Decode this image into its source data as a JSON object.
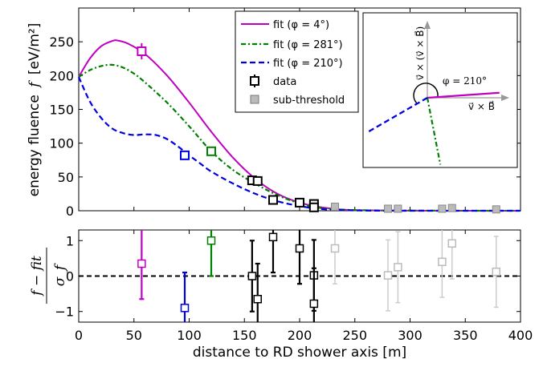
{
  "chart_data": [
    {
      "type": "line",
      "panel": "top",
      "ylabel": "energy fluence",
      "ylabel_symbol": "f",
      "ylabel_unit": "[eV/m²]",
      "xlim": [
        0,
        400
      ],
      "ylim": [
        0,
        300
      ],
      "yticks": [
        0,
        50,
        100,
        150,
        200,
        250
      ],
      "xticks": [
        0,
        50,
        100,
        150,
        200,
        250,
        300,
        350,
        400
      ],
      "legend_position": "top-center",
      "series": [
        {
          "name": "fit (φ = 4°)",
          "style": "solid",
          "color": "#c000c0",
          "x": [
            0,
            10,
            20,
            30,
            35,
            45,
            60,
            80,
            100,
            120,
            140,
            160,
            180,
            200,
            220,
            240,
            270,
            300,
            350,
            400
          ],
          "y": [
            198,
            225,
            243,
            251,
            252,
            247,
            232,
            200,
            160,
            117,
            78,
            47,
            25,
            12,
            5,
            1.5,
            0.5,
            0.2,
            0,
            0
          ]
        },
        {
          "name": "fit (φ = 281°)",
          "style": "dashdot",
          "color": "#008000",
          "x": [
            0,
            10,
            20,
            30,
            40,
            50,
            60,
            80,
            100,
            120,
            140,
            160,
            180,
            200,
            220,
            250,
            300,
            350,
            400
          ],
          "y": [
            198,
            208,
            214,
            216,
            212,
            203,
            190,
            160,
            125,
            88,
            60,
            40,
            23,
            11,
            4,
            1,
            0.3,
            0,
            0
          ]
        },
        {
          "name": "fit (φ = 210°)",
          "style": "dashed",
          "color": "#0000e0",
          "x": [
            0,
            10,
            20,
            30,
            40,
            50,
            60,
            70,
            80,
            90,
            100,
            110,
            120,
            140,
            160,
            180,
            200,
            220,
            250,
            300,
            400
          ],
          "y": [
            198,
            162,
            138,
            122,
            115,
            112,
            113,
            112,
            106,
            95,
            82,
            70,
            58,
            40,
            25,
            14,
            7,
            2.5,
            0.5,
            0,
            0
          ]
        }
      ],
      "data_points": [
        {
          "x": 57,
          "y": 236,
          "err": 12,
          "color": "#c000c0",
          "kind": "data"
        },
        {
          "x": 96,
          "y": 82,
          "err": 5,
          "color": "#0000e0",
          "kind": "data"
        },
        {
          "x": 120,
          "y": 88,
          "err": 5,
          "color": "#008000",
          "kind": "data"
        },
        {
          "x": 157,
          "y": 45,
          "err": 4,
          "color": "#000000",
          "kind": "data"
        },
        {
          "x": 162,
          "y": 44,
          "err": 4,
          "color": "#000000",
          "kind": "data"
        },
        {
          "x": 176,
          "y": 16,
          "err": 4,
          "color": "#000000",
          "kind": "data"
        },
        {
          "x": 200,
          "y": 12,
          "err": 4,
          "color": "#000000",
          "kind": "data"
        },
        {
          "x": 213,
          "y": 10,
          "err": 4,
          "color": "#000000",
          "kind": "data"
        },
        {
          "x": 213,
          "y": 5,
          "err": 3,
          "color": "#000000",
          "kind": "data"
        },
        {
          "x": 232,
          "y": 6,
          "err": 0,
          "color": "#aaaaaa",
          "kind": "sub-threshold"
        },
        {
          "x": 280,
          "y": 3,
          "err": 0,
          "color": "#aaaaaa",
          "kind": "sub-threshold"
        },
        {
          "x": 289,
          "y": 3,
          "err": 0,
          "color": "#aaaaaa",
          "kind": "sub-threshold"
        },
        {
          "x": 329,
          "y": 3,
          "err": 0,
          "color": "#aaaaaa",
          "kind": "sub-threshold"
        },
        {
          "x": 338,
          "y": 4,
          "err": 0,
          "color": "#aaaaaa",
          "kind": "sub-threshold"
        },
        {
          "x": 378,
          "y": 2,
          "err": 0,
          "color": "#aaaaaa",
          "kind": "sub-threshold"
        }
      ],
      "legend": {
        "fit4": "fit (φ = 4°)",
        "fit281": "fit (φ = 281°)",
        "fit210": "fit (φ = 210°)",
        "data": "data",
        "sub": "sub-threshold"
      },
      "inset": {
        "vertical_label": "v⃗ × (v⃗ × B⃗)",
        "horizontal_label": "v⃗ × B⃗",
        "angle_label": "φ = 210°",
        "directions_deg": [
          {
            "name": "φ = 4°",
            "angle": 4,
            "color": "#c000c0"
          },
          {
            "name": "φ = 281°",
            "angle": 281,
            "color": "#008000"
          },
          {
            "name": "φ = 210°",
            "angle": 210,
            "color": "#0000e0"
          }
        ]
      }
    },
    {
      "type": "scatter",
      "panel": "bottom",
      "xlabel": "distance to RD shower axis [m]",
      "ylabel_numerator": "f − fit",
      "ylabel_denominator": "σ_f",
      "xlim": [
        0,
        400
      ],
      "ylim": [
        -1.3,
        1.3
      ],
      "yticks": [
        1,
        0,
        -1
      ],
      "xticks": [
        0,
        50,
        100,
        150,
        200,
        250,
        300,
        350,
        400
      ],
      "reference_line": 0,
      "points": [
        {
          "x": 57,
          "y": 0.35,
          "err": 1.0,
          "color": "#c000c0"
        },
        {
          "x": 96,
          "y": -0.9,
          "err": 1.0,
          "color": "#0000e0"
        },
        {
          "x": 120,
          "y": 1.0,
          "err": 1.0,
          "color": "#008000"
        },
        {
          "x": 157,
          "y": 0.0,
          "err": 1.0,
          "color": "#000000"
        },
        {
          "x": 162,
          "y": -0.65,
          "err": 1.0,
          "color": "#000000"
        },
        {
          "x": 176,
          "y": 1.1,
          "err": 1.0,
          "color": "#000000"
        },
        {
          "x": 200,
          "y": 0.78,
          "err": 1.0,
          "color": "#000000"
        },
        {
          "x": 213,
          "y": 0.02,
          "err": 1.0,
          "color": "#000000"
        },
        {
          "x": 213,
          "y": -0.78,
          "err": 1.0,
          "color": "#000000"
        },
        {
          "x": 232,
          "y": 0.78,
          "err": 1.0,
          "color": "#cccccc"
        },
        {
          "x": 280,
          "y": 0.02,
          "err": 1.0,
          "color": "#cccccc"
        },
        {
          "x": 289,
          "y": 0.25,
          "err": 1.0,
          "color": "#cccccc"
        },
        {
          "x": 329,
          "y": 0.4,
          "err": 1.0,
          "color": "#cccccc"
        },
        {
          "x": 338,
          "y": 0.92,
          "err": 1.0,
          "color": "#cccccc"
        },
        {
          "x": 378,
          "y": 0.12,
          "err": 1.0,
          "color": "#cccccc"
        }
      ]
    }
  ]
}
